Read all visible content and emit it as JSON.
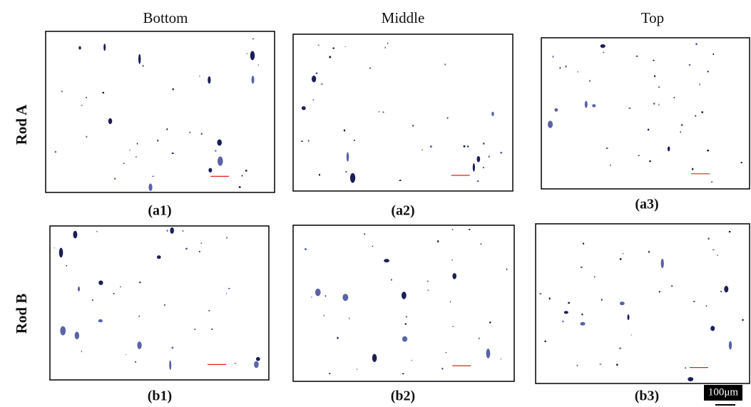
{
  "column_headers": [
    "Bottom",
    "Middle",
    "Top"
  ],
  "row_labels": [
    "Rod A",
    "Rod B"
  ],
  "panel_labels": [
    "(a1)",
    "(a2)",
    "(a3)",
    "(b1)",
    "(b2)",
    "(b3)"
  ],
  "scale_bar": "100μm"
}
